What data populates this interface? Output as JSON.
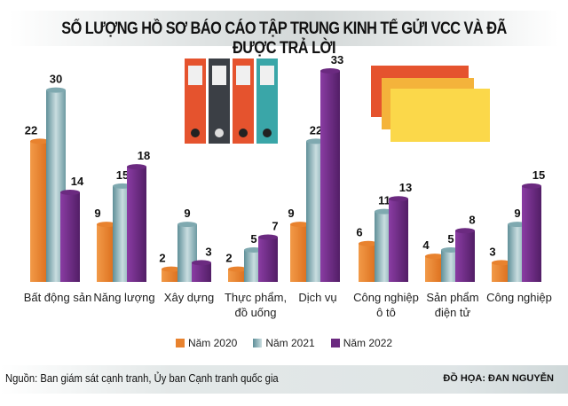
{
  "title": "SỐ LƯỢNG HỒ SƠ BÁO CÁO TẬP TRUNG KINH TẾ GỬI VCC VÀ ĐÃ ĐƯỢC TRẢ LỜI",
  "source": "Nguồn: Ban giám sát cạnh tranh, Ủy ban Cạnh tranh quốc gia",
  "credit": "ĐỒ HỌA: ĐAN NGUYỄN",
  "chart_data": {
    "type": "bar",
    "title": "SỐ LƯỢNG HỒ SƠ BÁO CÁO TẬP TRUNG KINH TẾ GỬI VCC VÀ ĐÃ ĐƯỢC TRẢ LỜI",
    "categories": [
      [
        "Bất động sản"
      ],
      [
        "Năng lượng"
      ],
      [
        "Xây dựng"
      ],
      [
        "Thực phẩm,",
        "đồ uống"
      ],
      [
        "Dịch vụ"
      ],
      [
        "Công nghiệp",
        "ô tô"
      ],
      [
        "Sản phẩm",
        "điện tử"
      ],
      [
        "Công nghiệp"
      ]
    ],
    "series": [
      {
        "name": "Năm 2020",
        "color": "#e8822e",
        "values": [
          22,
          9,
          2,
          2,
          9,
          6,
          4,
          3
        ]
      },
      {
        "name": "Năm 2021",
        "color": "#7fa9b0",
        "values": [
          30,
          15,
          9,
          5,
          22,
          11,
          5,
          9
        ]
      },
      {
        "name": "Năm 2022",
        "color": "#6b2a80",
        "values": [
          14,
          18,
          3,
          7,
          33,
          13,
          8,
          15
        ]
      }
    ],
    "ylim": [
      0,
      33
    ],
    "grid": false,
    "legend": "bottom"
  }
}
